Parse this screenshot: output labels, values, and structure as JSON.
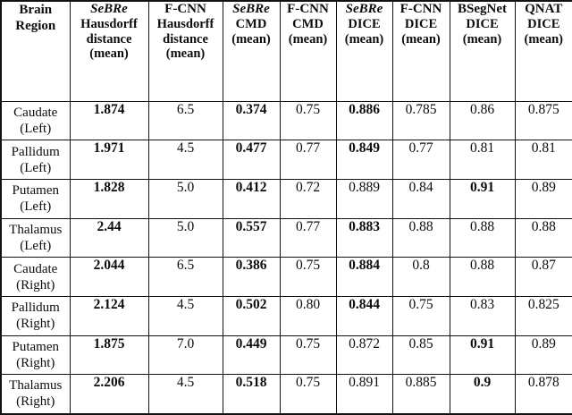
{
  "table": {
    "title": "brain-region-segmentation-comparison",
    "colors": {
      "border": "#111111",
      "text": "#0d0d0d",
      "background": "#ffffff"
    },
    "region_header": {
      "line1": "Brain",
      "line2": "Region"
    },
    "columns": [
      {
        "model": "SeBRe",
        "italic": true,
        "metric_lines": [
          "Hausdorff",
          "distance",
          "(mean)"
        ]
      },
      {
        "model": "F-CNN",
        "italic": false,
        "metric_lines": [
          "Hausdorff",
          "distance",
          "(mean)"
        ]
      },
      {
        "model": "SeBRe",
        "italic": true,
        "metric_lines": [
          "CMD",
          "(mean)"
        ]
      },
      {
        "model": "F-CNN",
        "italic": false,
        "metric_lines": [
          "CMD",
          "(mean)"
        ]
      },
      {
        "model": "SeBRe",
        "italic": true,
        "metric_lines": [
          "DICE",
          "(mean)"
        ]
      },
      {
        "model": "F-CNN",
        "italic": false,
        "metric_lines": [
          "DICE",
          "(mean)"
        ]
      },
      {
        "model": "BSegNet",
        "italic": false,
        "metric_lines": [
          "DICE",
          "(mean)"
        ]
      },
      {
        "model": "QNAT",
        "italic": false,
        "metric_lines": [
          "DICE",
          "(mean)"
        ]
      }
    ],
    "rows": [
      {
        "region_line1": "Caudate",
        "region_line2": "(Left)",
        "cells": [
          {
            "value": "1.874",
            "bold": true
          },
          {
            "value": "6.5",
            "bold": false
          },
          {
            "value": "0.374",
            "bold": true
          },
          {
            "value": "0.75",
            "bold": false
          },
          {
            "value": "0.886",
            "bold": true
          },
          {
            "value": "0.785",
            "bold": false
          },
          {
            "value": "0.86",
            "bold": false
          },
          {
            "value": "0.875",
            "bold": false
          }
        ]
      },
      {
        "region_line1": "Pallidum",
        "region_line2": "(Left)",
        "cells": [
          {
            "value": "1.971",
            "bold": true
          },
          {
            "value": "4.5",
            "bold": false
          },
          {
            "value": "0.477",
            "bold": true
          },
          {
            "value": "0.77",
            "bold": false
          },
          {
            "value": "0.849",
            "bold": true
          },
          {
            "value": "0.77",
            "bold": false
          },
          {
            "value": "0.81",
            "bold": false
          },
          {
            "value": "0.81",
            "bold": false
          }
        ]
      },
      {
        "region_line1": "Putamen",
        "region_line2": "(Left)",
        "cells": [
          {
            "value": "1.828",
            "bold": true
          },
          {
            "value": "5.0",
            "bold": false
          },
          {
            "value": "0.412",
            "bold": true
          },
          {
            "value": "0.72",
            "bold": false
          },
          {
            "value": "0.889",
            "bold": false
          },
          {
            "value": "0.84",
            "bold": false
          },
          {
            "value": "0.91",
            "bold": true
          },
          {
            "value": "0.89",
            "bold": false
          }
        ]
      },
      {
        "region_line1": "Thalamus",
        "region_line2": "(Left)",
        "cells": [
          {
            "value": "2.44",
            "bold": true
          },
          {
            "value": "5.0",
            "bold": false
          },
          {
            "value": "0.557",
            "bold": true
          },
          {
            "value": "0.77",
            "bold": false
          },
          {
            "value": "0.883",
            "bold": true
          },
          {
            "value": "0.88",
            "bold": false
          },
          {
            "value": "0.88",
            "bold": false
          },
          {
            "value": "0.88",
            "bold": false
          }
        ]
      },
      {
        "region_line1": "Caudate",
        "region_line2": "(Right)",
        "cells": [
          {
            "value": "2.044",
            "bold": true
          },
          {
            "value": "6.5",
            "bold": false
          },
          {
            "value": "0.386",
            "bold": true
          },
          {
            "value": "0.75",
            "bold": false
          },
          {
            "value": "0.884",
            "bold": true
          },
          {
            "value": "0.8",
            "bold": false
          },
          {
            "value": "0.88",
            "bold": false
          },
          {
            "value": "0.87",
            "bold": false
          }
        ]
      },
      {
        "region_line1": "Pallidum",
        "region_line2": "(Right)",
        "cells": [
          {
            "value": "2.124",
            "bold": true
          },
          {
            "value": "4.5",
            "bold": false
          },
          {
            "value": "0.502",
            "bold": true
          },
          {
            "value": "0.80",
            "bold": false
          },
          {
            "value": "0.844",
            "bold": true
          },
          {
            "value": "0.75",
            "bold": false
          },
          {
            "value": "0.83",
            "bold": false
          },
          {
            "value": "0.825",
            "bold": false
          }
        ]
      },
      {
        "region_line1": "Putamen",
        "region_line2": "(Right)",
        "cells": [
          {
            "value": "1.875",
            "bold": true
          },
          {
            "value": "7.0",
            "bold": false
          },
          {
            "value": "0.449",
            "bold": true
          },
          {
            "value": "0.75",
            "bold": false
          },
          {
            "value": "0.872",
            "bold": false
          },
          {
            "value": "0.85",
            "bold": false
          },
          {
            "value": "0.91",
            "bold": true
          },
          {
            "value": "0.89",
            "bold": false
          }
        ]
      },
      {
        "region_line1": "Thalamus",
        "region_line2": "(Right)",
        "cells": [
          {
            "value": "2.206",
            "bold": true
          },
          {
            "value": "4.5",
            "bold": false
          },
          {
            "value": "0.518",
            "bold": true
          },
          {
            "value": "0.75",
            "bold": false
          },
          {
            "value": "0.891",
            "bold": false
          },
          {
            "value": "0.885",
            "bold": false
          },
          {
            "value": "0.9",
            "bold": true
          },
          {
            "value": "0.878",
            "bold": false
          }
        ]
      }
    ]
  }
}
